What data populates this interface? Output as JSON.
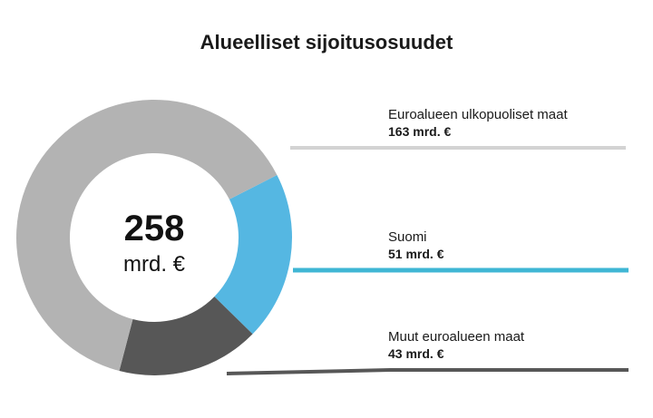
{
  "chart_data": {
    "type": "pie",
    "title": "Alueelliset sijoitusosuudet",
    "total_value": "258",
    "total_unit": "mrd. €",
    "slices": [
      {
        "name": "Euroalueen ulkopuoliset maat",
        "value": 163,
        "label": "163 mrd. €",
        "color": "#b3b3b3",
        "line_color": "#d3d3d3"
      },
      {
        "name": "Suomi",
        "value": 51,
        "label": "51 mrd. €",
        "color": "#55b7e2",
        "line_color": "#3fb6d4"
      },
      {
        "name": "Muut euroalueen maat",
        "value": 43,
        "label": "43 mrd. €",
        "color": "#575757",
        "line_color": "#575757"
      }
    ]
  }
}
